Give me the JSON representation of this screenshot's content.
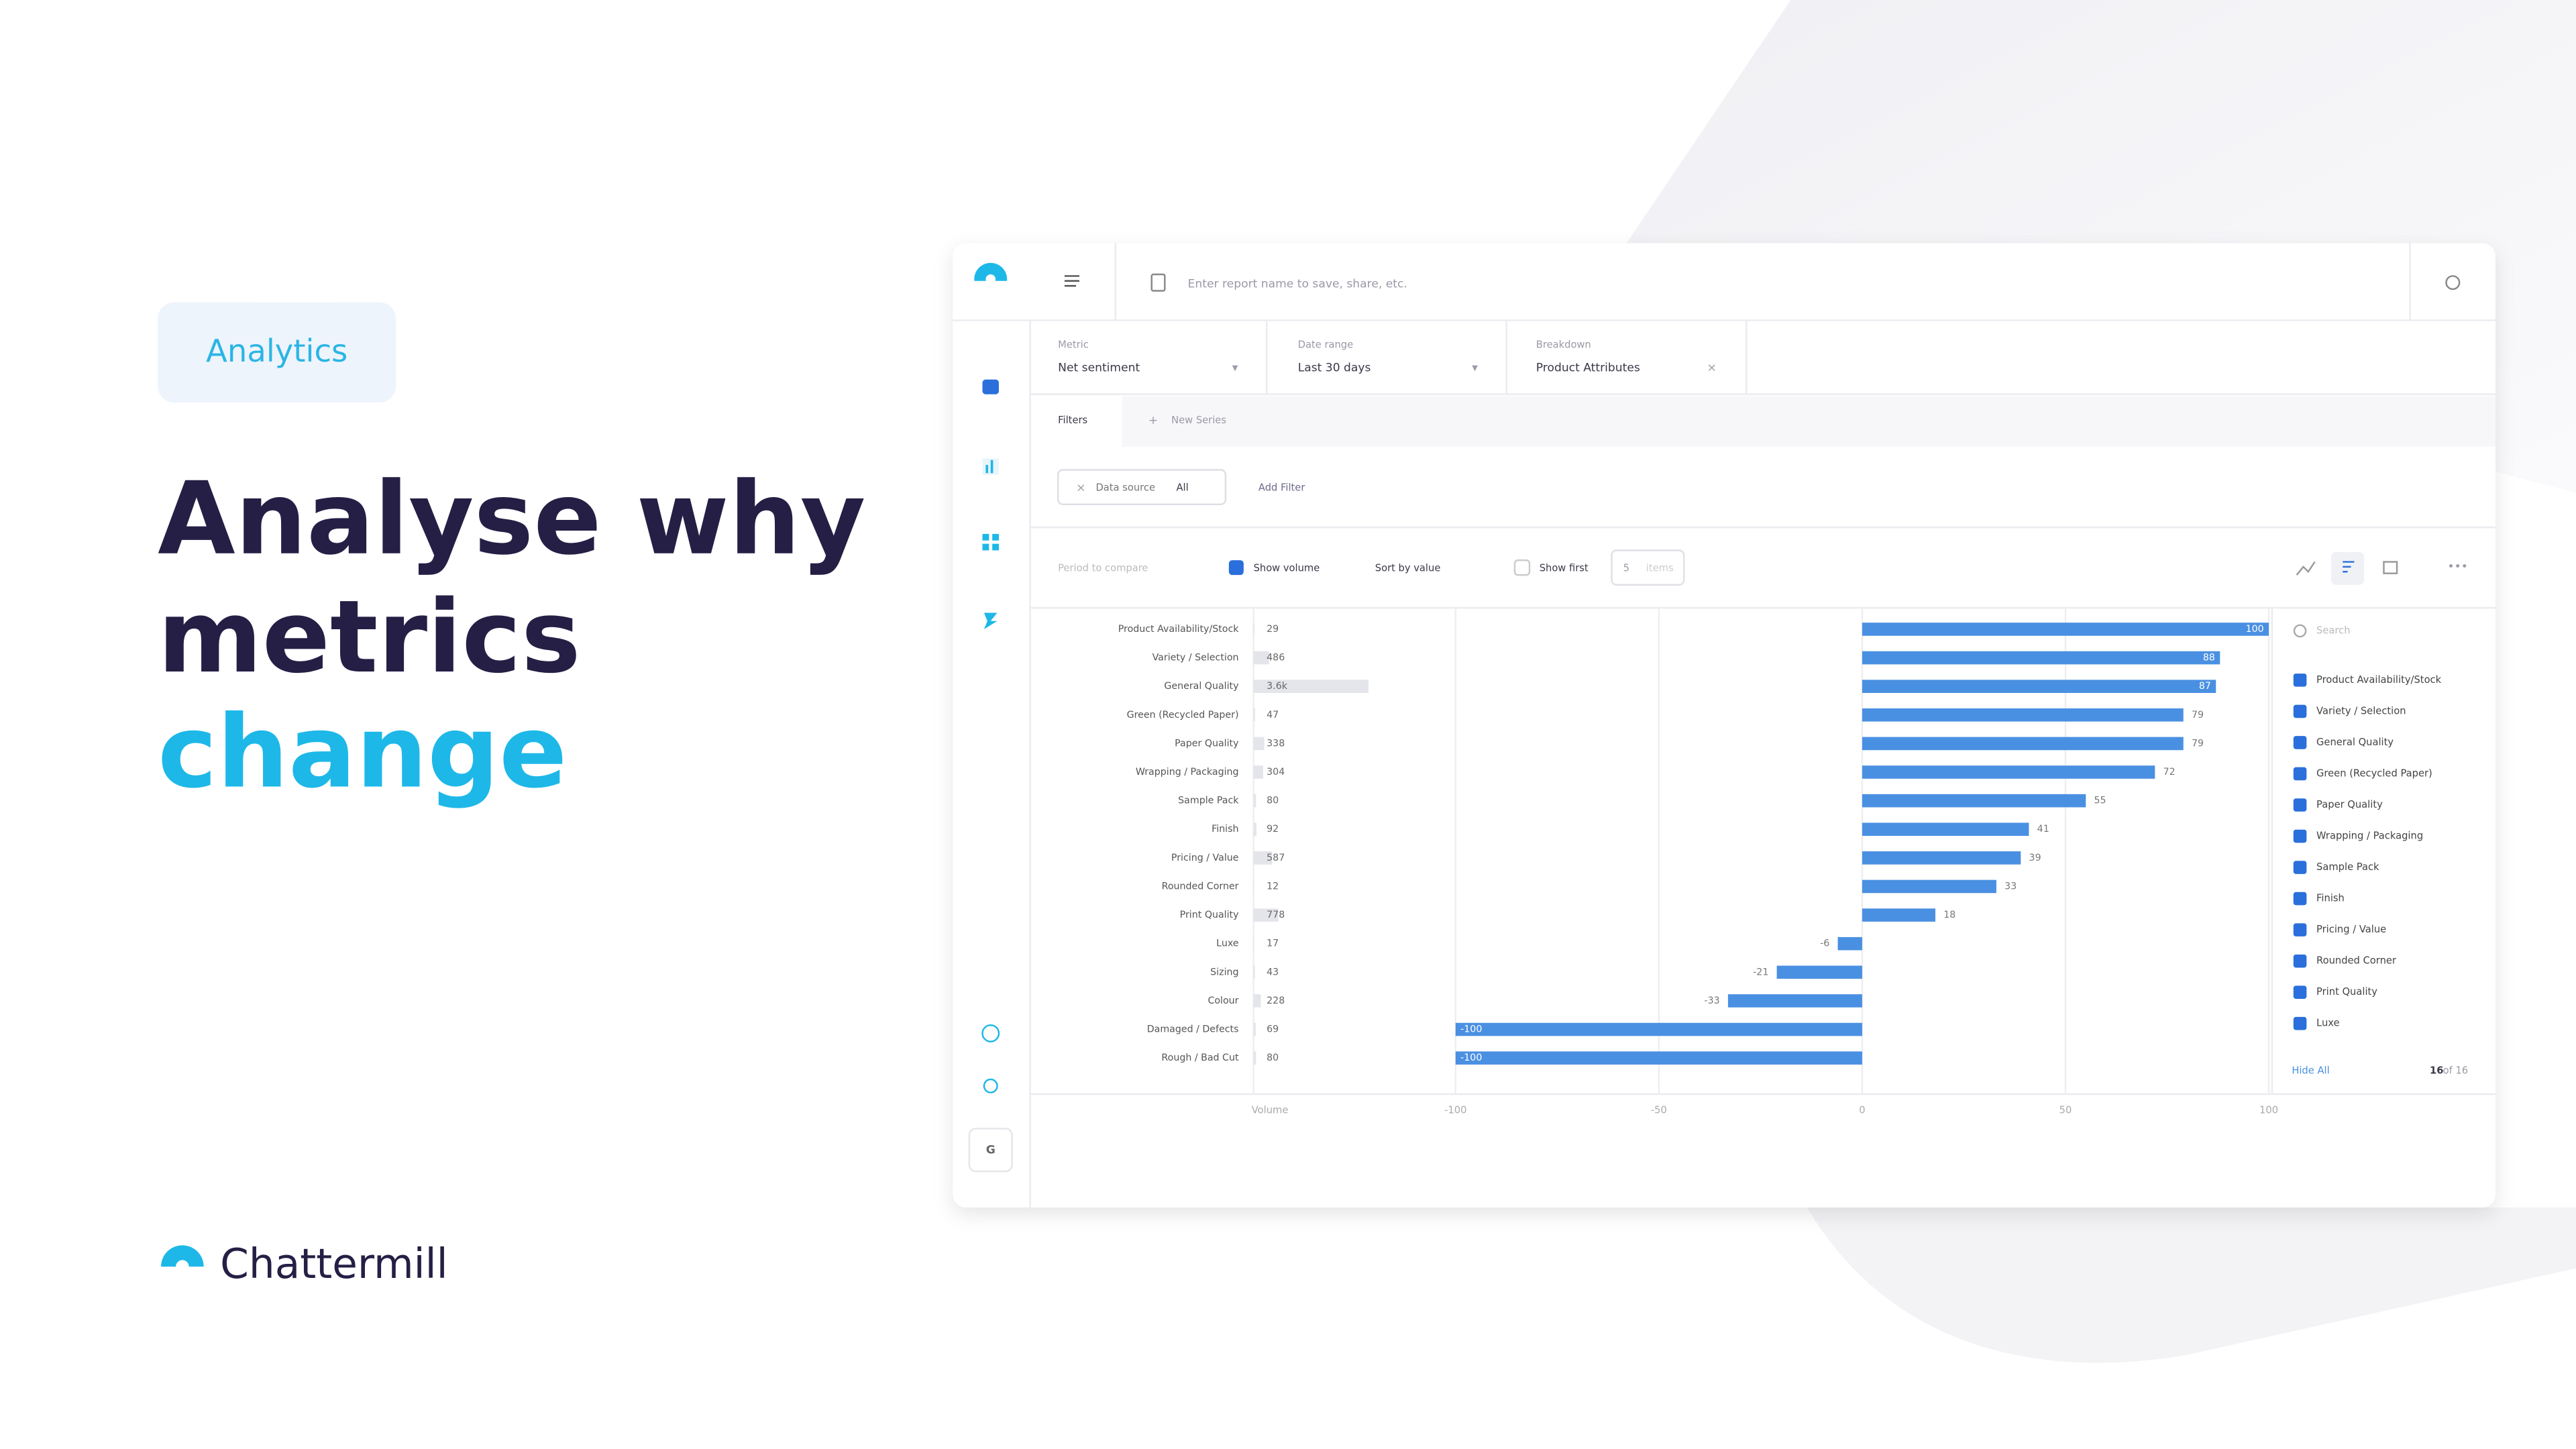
{
  "badge": "Analytics",
  "headline": {
    "lines": [
      "Analyse why",
      "metrics"
    ],
    "accent": "change"
  },
  "brand": "Chattermill",
  "app": {
    "search_placeholder": "Enter report name to save, share, etc.",
    "controls": [
      {
        "label": "Metric",
        "value": "Net sentiment"
      },
      {
        "label": "Date range",
        "value": "Last 30 days"
      },
      {
        "label": "Breakdown",
        "value": "Product Attributes"
      }
    ],
    "tabs": [
      "Filters",
      "New Series"
    ],
    "filter": {
      "name": "Data source",
      "value": "All"
    },
    "add_filter": "Add Filter",
    "toolbar": {
      "period": "Period to compare",
      "show_volume": "Show volume",
      "sort": "Sort by value",
      "show_first": "Show first",
      "count": "5",
      "count_unit": "items"
    },
    "legend": {
      "search": "Search",
      "items": [
        "Product Availability/Stock",
        "Variety / Selection",
        "General Quality",
        "Green (Recycled Paper)",
        "Paper Quality",
        "Wrapping / Packaging",
        "Sample Pack",
        "Finish",
        "Pricing / Value",
        "Rounded Corner",
        "Print Quality",
        "Luxe"
      ],
      "hide_all": "Hide All",
      "count": "16",
      "count_total": "of 16"
    },
    "avatar": "G"
  },
  "chart_data": {
    "type": "bar",
    "orientation": "horizontal",
    "categories": [
      "Product Availability/Stock",
      "Variety / Selection",
      "General Quality",
      "Green (Recycled Paper)",
      "Paper Quality",
      "Wrapping / Packaging",
      "Sample Pack",
      "Finish",
      "Pricing / Value",
      "Rounded Corner",
      "Print Quality",
      "Luxe",
      "Sizing",
      "Colour",
      "Damaged / Defects",
      "Rough / Bad Cut"
    ],
    "values": [
      100,
      88,
      87,
      79,
      79,
      72,
      55,
      41,
      39,
      33,
      18,
      -6,
      -21,
      -33,
      -100,
      -100
    ],
    "color": "#4a90e2",
    "volume": {
      "label": "Volume",
      "color": "#e4e5ea",
      "values": [
        29,
        486,
        3600,
        47,
        338,
        304,
        80,
        92,
        587,
        12,
        778,
        17,
        43,
        228,
        69,
        80
      ],
      "value_labels": [
        "29",
        "486",
        "3.6k",
        "47",
        "338",
        "304",
        "80",
        "92",
        "587",
        "12",
        "778",
        "17",
        "43",
        "228",
        "69",
        "80"
      ]
    },
    "xlim": [
      -100,
      100
    ],
    "xticks": [
      -100,
      -50,
      0,
      50,
      100
    ],
    "grid": true
  }
}
